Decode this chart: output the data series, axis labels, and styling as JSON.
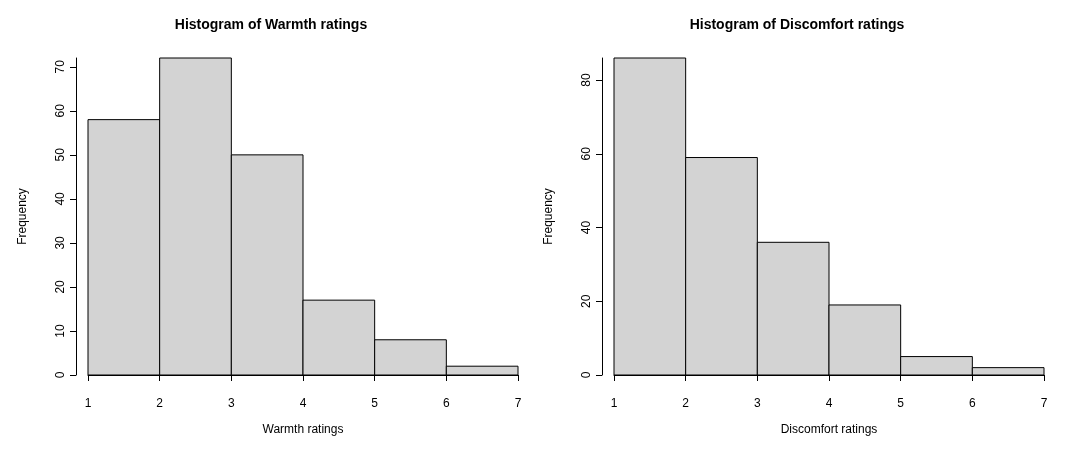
{
  "chart_data": [
    {
      "type": "histogram",
      "title": "Histogram of Warmth ratings",
      "xlabel": "Warmth ratings",
      "ylabel": "Frequency",
      "bins": [
        1,
        2,
        3,
        4,
        5,
        6,
        7
      ],
      "values": [
        58,
        72,
        50,
        17,
        8,
        2
      ],
      "color": "#d3d3d3",
      "xlim": [
        1,
        7
      ],
      "xticks": [
        1,
        2,
        3,
        4,
        5,
        6,
        7
      ],
      "ylim": [
        0,
        72
      ],
      "yticks": [
        0,
        10,
        20,
        30,
        40,
        50,
        60,
        70
      ]
    },
    {
      "type": "histogram",
      "title": "Histogram of Discomfort ratings",
      "xlabel": "Discomfort ratings",
      "ylabel": "Frequency",
      "bins": [
        1,
        2,
        3,
        4,
        5,
        6,
        7
      ],
      "values": [
        86,
        59,
        36,
        19,
        5,
        2
      ],
      "color": "#d3d3d3",
      "xlim": [
        1,
        7
      ],
      "xticks": [
        1,
        2,
        3,
        4,
        5,
        6,
        7
      ],
      "ylim": [
        0,
        86
      ],
      "yticks": [
        0,
        20,
        40,
        60,
        80
      ]
    }
  ]
}
